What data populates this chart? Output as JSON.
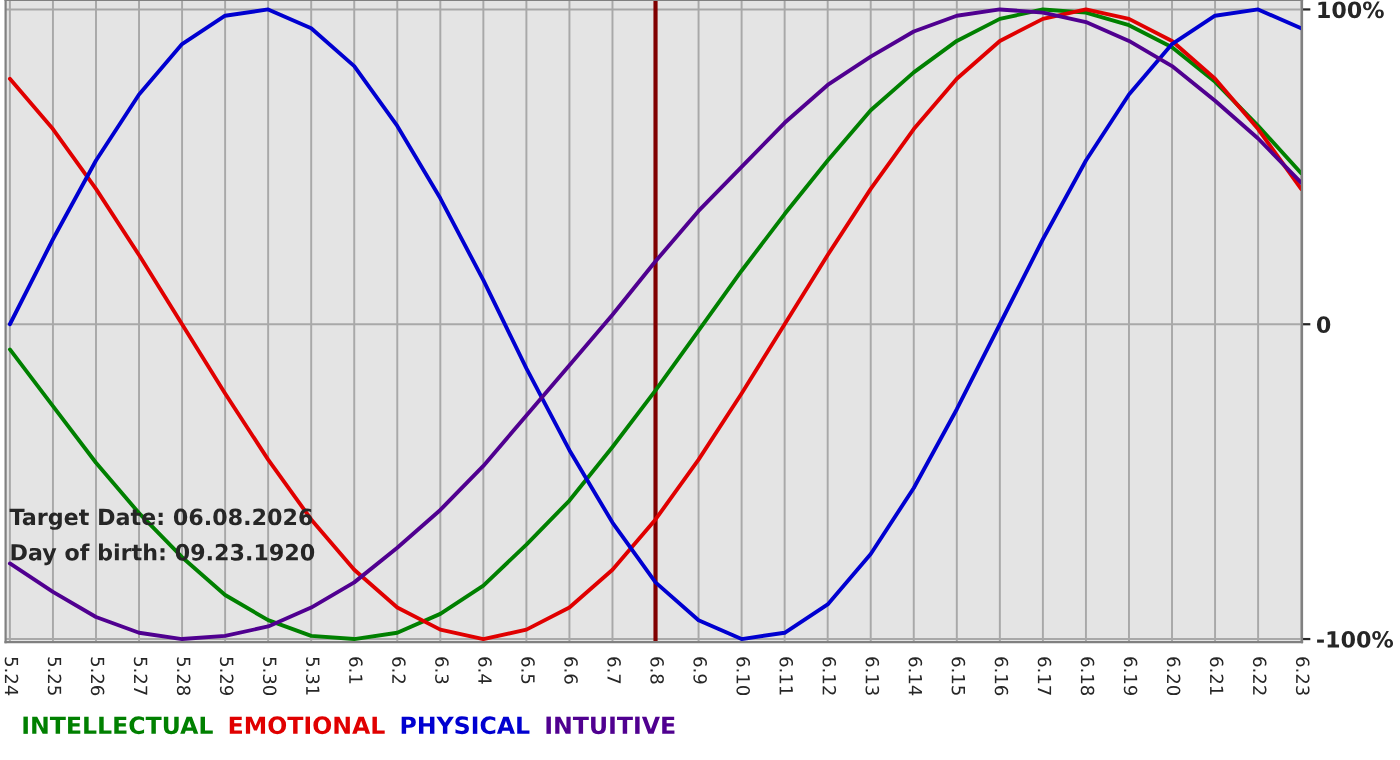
{
  "chart_data": {
    "type": "line",
    "categories": [
      "5.24",
      "5.25",
      "5.26",
      "5.27",
      "5.28",
      "5.29",
      "5.30",
      "5.31",
      "6.1",
      "6.2",
      "6.3",
      "6.4",
      "6.5",
      "6.6",
      "6.7",
      "6.8",
      "6.9",
      "6.10",
      "6.11",
      "6.12",
      "6.13",
      "6.14",
      "6.15",
      "6.16",
      "6.17",
      "6.18",
      "6.19",
      "6.20",
      "6.21",
      "6.22",
      "6.23"
    ],
    "series": [
      {
        "name": "INTELLECTUAL",
        "color": "#008000",
        "values": [
          -8,
          -26,
          -44,
          -60,
          -74,
          -86,
          -94,
          -99,
          -100,
          -98,
          -92,
          -83,
          -70,
          -56,
          -39,
          -21,
          -2,
          17,
          35,
          52,
          68,
          80,
          90,
          97,
          100,
          99,
          95,
          88,
          77,
          63,
          48
        ]
      },
      {
        "name": "EMOTIONAL",
        "color": "#e00000",
        "values": [
          78,
          62,
          43,
          22,
          0,
          -22,
          -43,
          -62,
          -78,
          -90,
          -97,
          -100,
          -97,
          -90,
          -78,
          -62,
          -43,
          -22,
          0,
          22,
          43,
          62,
          78,
          90,
          97,
          100,
          97,
          90,
          78,
          62,
          43
        ]
      },
      {
        "name": "PHYSICAL",
        "color": "#0000d0",
        "values": [
          0,
          27,
          52,
          73,
          89,
          98,
          100,
          94,
          82,
          63,
          40,
          14,
          -14,
          -40,
          -63,
          -82,
          -94,
          -100,
          -98,
          -89,
          -73,
          -52,
          -27,
          0,
          27,
          52,
          73,
          89,
          98,
          100,
          94
        ]
      },
      {
        "name": "INTUITIVE",
        "color": "#500090",
        "values": [
          -76,
          -85,
          -93,
          -98,
          -100,
          -99,
          -96,
          -90,
          -82,
          -71,
          -59,
          -45,
          -29,
          -13,
          3,
          20,
          36,
          50,
          64,
          76,
          85,
          93,
          98,
          100,
          99,
          96,
          90,
          82,
          71,
          59,
          45
        ]
      }
    ],
    "ylim": [
      -101,
      103
    ],
    "yticks": [
      {
        "value": 100,
        "label": "100%"
      },
      0,
      {
        "value": -100,
        "label": "-100%"
      }
    ],
    "ref_lines": [
      {
        "axis": "x",
        "value": "6.8",
        "color": "#800000"
      }
    ],
    "annotations": [
      "Target Date: 06.08.2026",
      "Day of birth: 09.23.1920"
    ],
    "grid": true,
    "legend": "bottom left",
    "marker": "none",
    "line_style": "solid"
  }
}
